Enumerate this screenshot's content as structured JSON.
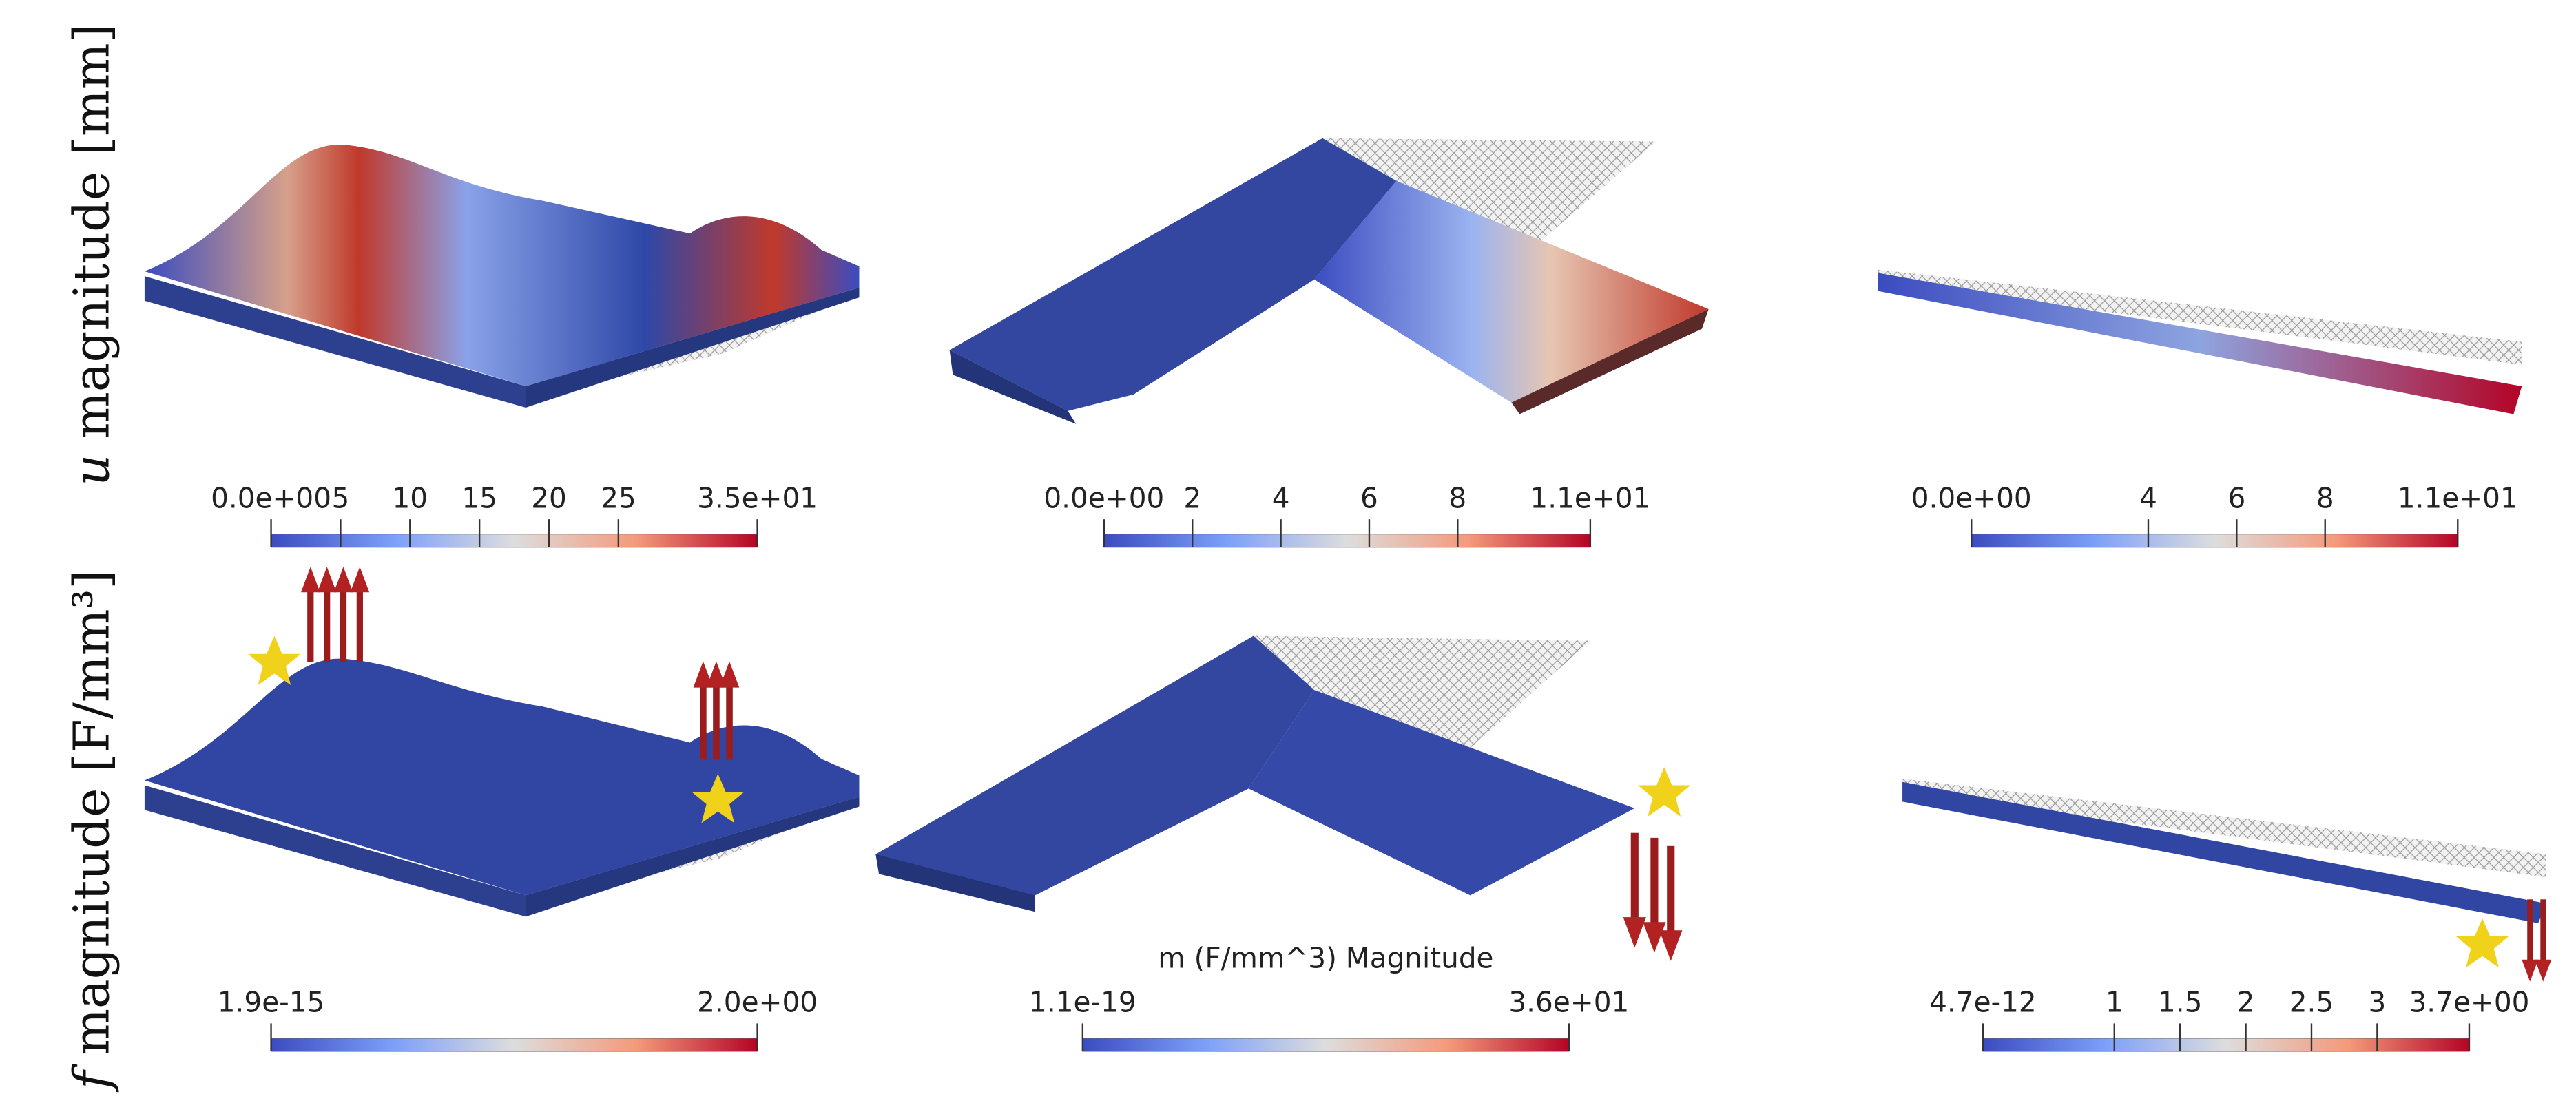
{
  "row_labels": [
    {
      "symbol": "u",
      "text": "magnitude [mm]"
    },
    {
      "symbol": "f",
      "text": "magnitude [F/mm³]"
    }
  ],
  "colorbars": [
    {
      "ticks": [
        {
          "value": 0,
          "label": "0.0e+00"
        },
        5,
        10,
        15,
        20,
        25,
        {
          "value": 35,
          "label": "3.5e+01"
        }
      ]
    },
    {
      "ticks": [
        {
          "value": 0,
          "label": "0.0e+00"
        },
        2,
        4,
        6,
        8,
        {
          "value": 11,
          "label": "1.1e+01"
        }
      ]
    },
    {
      "ticks": [
        {
          "value": 0,
          "label": "0.0e+00"
        },
        4,
        6,
        8,
        {
          "value": 11,
          "label": "1.1e+01"
        }
      ]
    },
    {
      "ticks": [
        {
          "value": 1.9e-15,
          "label": "1.9e-15"
        },
        {
          "value": 2,
          "label": "2.0e+00"
        }
      ]
    },
    {
      "title": "m (F/mm^3) Magnitude",
      "ticks": [
        {
          "value": 1.1e-19,
          "label": "1.1e-19"
        },
        {
          "value": 36,
          "label": "3.6e+01"
        }
      ]
    },
    {
      "ticks": [
        {
          "value": 4.7e-12,
          "label": "4.7e-12"
        },
        1,
        1.5,
        2,
        2.5,
        3,
        {
          "value": 3.7,
          "label": "3.7e+00"
        }
      ]
    }
  ]
}
